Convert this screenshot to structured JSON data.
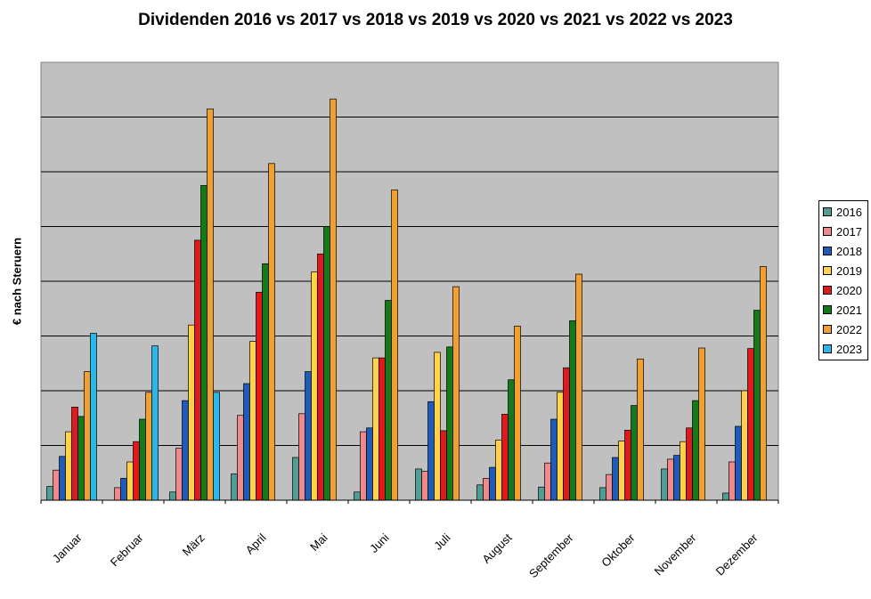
{
  "chart_data": {
    "type": "bar",
    "title": "Dividenden 2016 vs 2017 vs 2018 vs 2019 vs 2020 vs 2021 vs 2022 vs 2023",
    "ylabel": "€ nach Steruern",
    "xlabel": "",
    "ylim": [
      0,
      8
    ],
    "grid": true,
    "legend_position": "right",
    "categories": [
      "Januar",
      "Februar",
      "März",
      "April",
      "Mai",
      "Juni",
      "Juli",
      "August",
      "September",
      "Oktober",
      "November",
      "Dezember"
    ],
    "series": [
      {
        "name": "2016",
        "color": "#4E9E96",
        "values": [
          0.25,
          0,
          0.15,
          0.48,
          0.78,
          0.15,
          0.57,
          0.28,
          0.24,
          0.23,
          0.57,
          0.13
        ]
      },
      {
        "name": "2017",
        "color": "#F08A8A",
        "values": [
          0.55,
          0.23,
          0.95,
          1.55,
          1.58,
          1.25,
          0.53,
          0.4,
          0.68,
          0.47,
          0.75,
          0.7
        ]
      },
      {
        "name": "2018",
        "color": "#1F5BBD",
        "values": [
          0.8,
          0.4,
          1.82,
          2.13,
          2.35,
          1.32,
          1.8,
          0.6,
          1.48,
          0.78,
          0.82,
          1.35
        ]
      },
      {
        "name": "2019",
        "color": "#FFD24A",
        "values": [
          1.25,
          0.7,
          3.2,
          2.9,
          4.17,
          2.6,
          2.7,
          1.1,
          1.97,
          1.08,
          1.07,
          2.0
        ]
      },
      {
        "name": "2020",
        "color": "#E01A1A",
        "values": [
          1.7,
          1.07,
          4.75,
          3.8,
          4.5,
          2.6,
          1.27,
          1.57,
          2.42,
          1.28,
          1.32,
          2.77
        ]
      },
      {
        "name": "2021",
        "color": "#137A17",
        "values": [
          1.53,
          1.48,
          5.75,
          4.32,
          5.0,
          3.65,
          2.8,
          2.2,
          3.28,
          1.73,
          1.82,
          3.47
        ]
      },
      {
        "name": "2022",
        "color": "#F0A030",
        "values": [
          2.35,
          1.97,
          7.15,
          6.15,
          7.33,
          5.67,
          3.9,
          3.18,
          4.13,
          2.58,
          2.78,
          4.27
        ]
      },
      {
        "name": "2023",
        "color": "#2BB7E8",
        "values": [
          3.05,
          2.82,
          1.97,
          0,
          0,
          0,
          0,
          0,
          0,
          0,
          0,
          0
        ]
      }
    ]
  }
}
